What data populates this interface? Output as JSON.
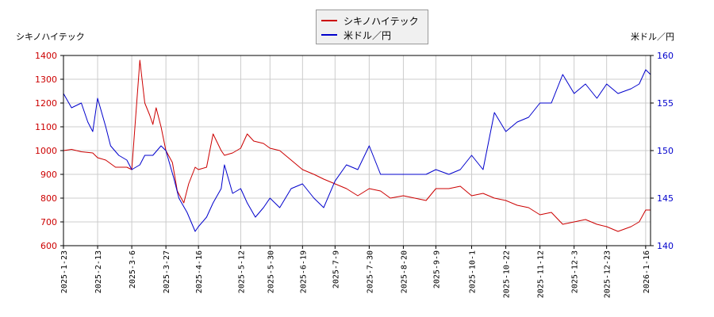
{
  "chart_data": {
    "type": "line",
    "y1_label": "シキノハイテック",
    "y2_label": "米ドル／円",
    "legend_placement": "top-center",
    "grid": true,
    "x_tick_labels": [
      "2025-1-23",
      "2025-2-13",
      "2025-3-6",
      "2025-3-27",
      "2025-4-16",
      "2025-5-12",
      "2025-5-30",
      "2025-6-19",
      "2025-7-9",
      "2025-7-30",
      "2025-8-20",
      "2025-9-9",
      "2025-10-1",
      "2025-10-22",
      "2025-11-12",
      "2025-12-3",
      "2025-12-23",
      "2026-1-16"
    ],
    "x_range": [
      "2025-1-23",
      "2026-1-19"
    ],
    "y1_ticks": [
      600,
      700,
      800,
      900,
      1000,
      1100,
      1200,
      1300,
      1400
    ],
    "y1_range": [
      600,
      1400
    ],
    "y2_ticks": [
      140,
      145,
      150,
      155,
      160
    ],
    "y2_range": [
      140,
      160
    ],
    "series": [
      {
        "name": "シキノハイテック",
        "axis": "y1",
        "color": "#cc0000",
        "x": [
          "2025-1-23",
          "2025-1-28",
          "2025-2-3",
          "2025-2-10",
          "2025-2-13",
          "2025-2-18",
          "2025-2-24",
          "2025-3-3",
          "2025-3-6",
          "2025-3-11",
          "2025-3-14",
          "2025-3-17",
          "2025-3-19",
          "2025-3-21",
          "2025-3-24",
          "2025-3-27",
          "2025-3-31",
          "2025-4-3",
          "2025-4-7",
          "2025-4-10",
          "2025-4-14",
          "2025-4-16",
          "2025-4-21",
          "2025-4-25",
          "2025-4-30",
          "2025-5-2",
          "2025-5-7",
          "2025-5-12",
          "2025-5-16",
          "2025-5-20",
          "2025-5-26",
          "2025-5-30",
          "2025-6-5",
          "2025-6-12",
          "2025-6-19",
          "2025-6-26",
          "2025-7-2",
          "2025-7-9",
          "2025-7-16",
          "2025-7-23",
          "2025-7-30",
          "2025-8-6",
          "2025-8-12",
          "2025-8-20",
          "2025-8-27",
          "2025-9-3",
          "2025-9-9",
          "2025-9-17",
          "2025-9-24",
          "2025-10-1",
          "2025-10-8",
          "2025-10-15",
          "2025-10-22",
          "2025-10-29",
          "2025-11-5",
          "2025-11-12",
          "2025-11-19",
          "2025-11-26",
          "2025-12-3",
          "2025-12-10",
          "2025-12-17",
          "2025-12-23",
          "2025-12-30",
          "2026-1-7",
          "2026-1-12",
          "2026-1-16",
          "2026-1-19"
        ],
        "values": [
          1000,
          1005,
          995,
          990,
          970,
          960,
          930,
          930,
          920,
          1380,
          1200,
          1150,
          1110,
          1180,
          1100,
          1000,
          950,
          830,
          780,
          860,
          930,
          920,
          930,
          1070,
          1000,
          980,
          990,
          1010,
          1070,
          1040,
          1030,
          1010,
          1000,
          960,
          920,
          900,
          880,
          860,
          840,
          810,
          840,
          830,
          800,
          810,
          800,
          790,
          840,
          840,
          850,
          810,
          820,
          800,
          790,
          770,
          760,
          730,
          740,
          690,
          700,
          710,
          690,
          680,
          660,
          680,
          700,
          750,
          750
        ]
      },
      {
        "name": "米ドル／円",
        "axis": "y2",
        "color": "#0000cc",
        "x": [
          "2025-1-23",
          "2025-1-28",
          "2025-2-3",
          "2025-2-7",
          "2025-2-10",
          "2025-2-13",
          "2025-2-18",
          "2025-2-21",
          "2025-2-26",
          "2025-3-3",
          "2025-3-6",
          "2025-3-11",
          "2025-3-14",
          "2025-3-19",
          "2025-3-24",
          "2025-3-27",
          "2025-4-1",
          "2025-4-4",
          "2025-4-9",
          "2025-4-14",
          "2025-4-16",
          "2025-4-21",
          "2025-4-25",
          "2025-4-30",
          "2025-5-2",
          "2025-5-7",
          "2025-5-12",
          "2025-5-16",
          "2025-5-21",
          "2025-5-26",
          "2025-5-30",
          "2025-6-5",
          "2025-6-12",
          "2025-6-19",
          "2025-6-26",
          "2025-7-2",
          "2025-7-9",
          "2025-7-16",
          "2025-7-23",
          "2025-7-30",
          "2025-8-6",
          "2025-8-12",
          "2025-8-20",
          "2025-8-27",
          "2025-9-3",
          "2025-9-9",
          "2025-9-17",
          "2025-9-24",
          "2025-10-1",
          "2025-10-8",
          "2025-10-15",
          "2025-10-22",
          "2025-10-29",
          "2025-11-5",
          "2025-11-12",
          "2025-11-19",
          "2025-11-26",
          "2025-12-3",
          "2025-12-10",
          "2025-12-17",
          "2025-12-23",
          "2025-12-30",
          "2026-1-7",
          "2026-1-12",
          "2026-1-16",
          "2026-1-19"
        ],
        "values": [
          156,
          154.5,
          155,
          153,
          152,
          155.5,
          152.5,
          150.5,
          149.5,
          149,
          148,
          148.5,
          149.5,
          149.5,
          150.5,
          150,
          147,
          145,
          143.5,
          141.5,
          142,
          143,
          144.5,
          146,
          148.5,
          145.5,
          146,
          144.5,
          143,
          144,
          145,
          144,
          146,
          146.5,
          145,
          144,
          146.8,
          148.5,
          148,
          150.5,
          147.5,
          147.5,
          147.5,
          147.5,
          147.5,
          148,
          147.5,
          148,
          149.5,
          148,
          154,
          152,
          153,
          153.5,
          155,
          155,
          158,
          156,
          157,
          155.5,
          157,
          156,
          156.5,
          157,
          158.5,
          158
        ]
      }
    ]
  }
}
